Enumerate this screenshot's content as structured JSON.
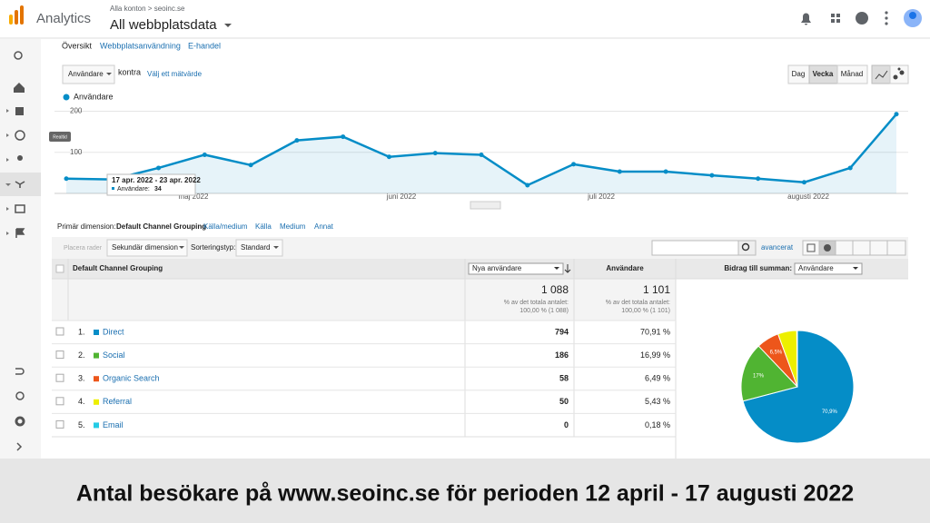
{
  "header": {
    "app": "Analytics",
    "breadcrumb": "Alla konton > seoinc.se",
    "view": "All webbplatsdata"
  },
  "sidebar": {
    "tooltip": "Realtid"
  },
  "tabs": [
    "Översikt",
    "Webbplatsanvändning",
    "E-handel"
  ],
  "controls": {
    "metric": "Användare",
    "versus": "kontra",
    "pick": "Välj ett mätvärde",
    "periods": [
      "Dag",
      "Vecka",
      "Månad"
    ]
  },
  "chart_data": [
    {
      "type": "line",
      "series": [
        {
          "name": "Användare",
          "color": "#058dc7",
          "values": [
            36,
            34,
            62,
            94,
            69,
            129,
            138,
            89,
            98,
            94,
            20,
            71,
            53,
            53,
            44,
            36,
            27,
            62,
            193
          ]
        }
      ],
      "xlabels": [
        "maj 2022",
        "juni 2022",
        "juli 2022",
        "augusti 2022"
      ],
      "ylim": [
        0,
        210
      ],
      "yticks": [
        100,
        200
      ],
      "grid": true,
      "tooltip": {
        "date": "17 apr. 2022 - 23 apr. 2022",
        "label": "Användare:",
        "value": "34"
      }
    },
    {
      "type": "pie",
      "values": [
        70.91,
        16.99,
        6.49,
        5.43,
        0.18
      ],
      "value_labels": [
        "70,9%",
        "17%",
        "6,5%",
        null,
        null
      ],
      "colors": [
        "#058dc7",
        "#50b432",
        "#ed561b",
        "#edef00",
        "#24cbe5"
      ]
    }
  ],
  "dimension": {
    "label": "Primär dimension:",
    "options": [
      "Default Channel Grouping",
      "Källa/medium",
      "Källa",
      "Medium",
      "Annat"
    ]
  },
  "toolbar": {
    "place_rows": "Placera rader",
    "secondary": "Sekundär dimension",
    "sort_label": "Sorteringstyp:",
    "sort_value": "Standard",
    "advanced": "avancerat"
  },
  "table": {
    "columns": [
      "Default Channel Grouping",
      "Nya användare",
      "Användare",
      "Bidrag till summan:",
      "Användare"
    ],
    "totals": [
      {
        "value": "1 088",
        "note": "% av det totala antalet:",
        "share": "100,00 % (1 088)"
      },
      {
        "value": "1 101",
        "note": "% av det totala antalet:",
        "share": "100,00 % (1 101)"
      }
    ],
    "rows": [
      {
        "rank": "1.",
        "name": "Direct",
        "new_users": "794",
        "users": "70,91 %"
      },
      {
        "rank": "2.",
        "name": "Social",
        "new_users": "186",
        "users": "16,99 %"
      },
      {
        "rank": "3.",
        "name": "Organic Search",
        "new_users": "58",
        "users": "6,49 %"
      },
      {
        "rank": "4.",
        "name": "Referral",
        "new_users": "50",
        "users": "5,43 %"
      },
      {
        "rank": "5.",
        "name": "Email",
        "new_users": "0",
        "users": "0,18 %"
      }
    ]
  },
  "caption": "Antal besökare på www.seoinc.se för perioden 12 april - 17 augusti 2022"
}
